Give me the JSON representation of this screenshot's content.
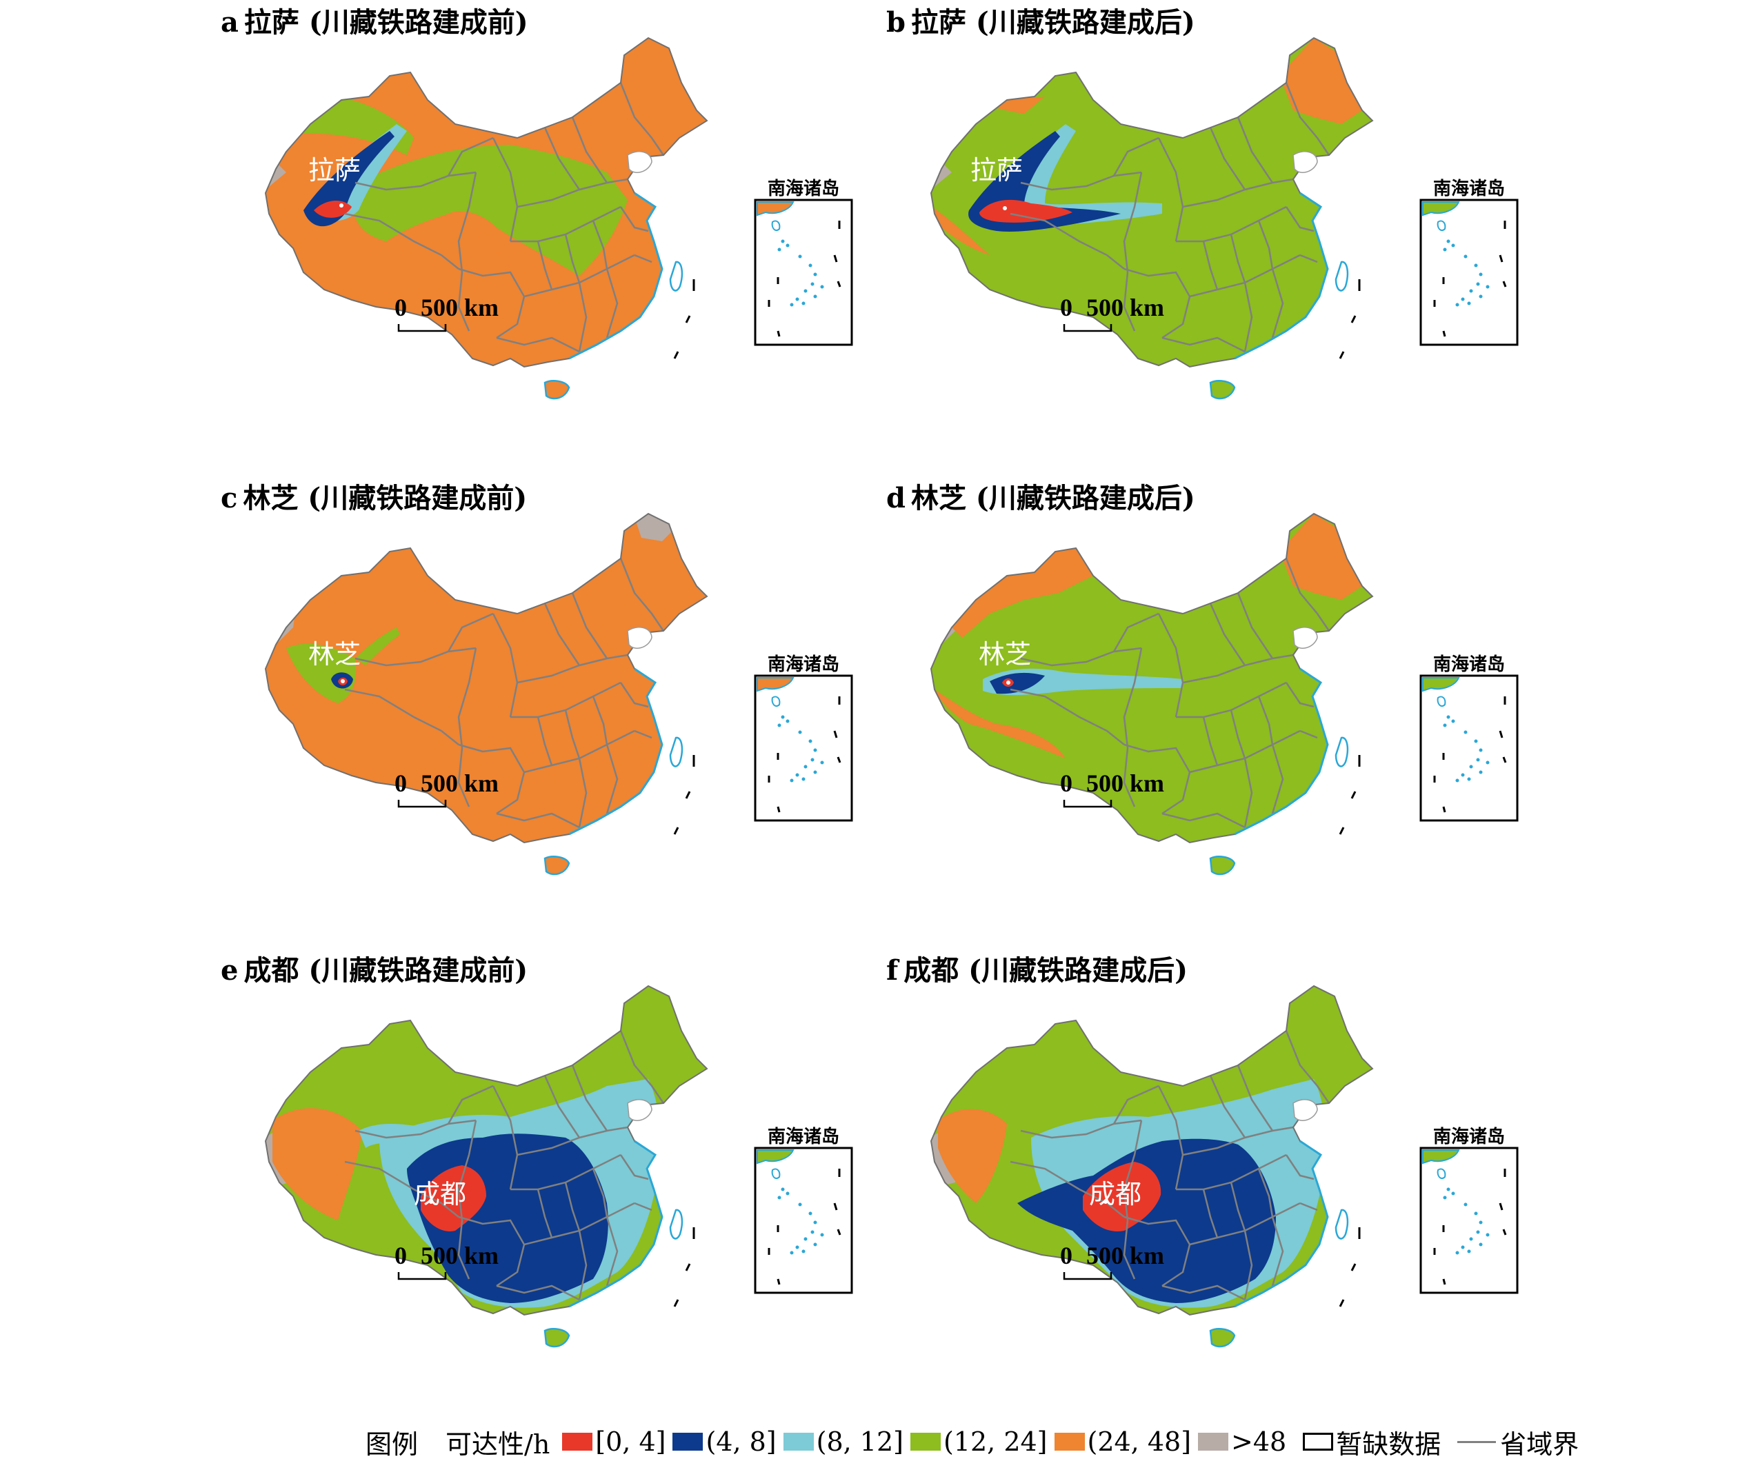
{
  "panels": [
    {
      "id": "a",
      "letter": "a",
      "title": "拉萨 (川藏铁路建成前)",
      "city": "拉萨",
      "base": "orange",
      "variant": "lhasa-before"
    },
    {
      "id": "b",
      "letter": "b",
      "title": "拉萨 (川藏铁路建成后)",
      "city": "拉萨",
      "base": "green",
      "variant": "lhasa-after"
    },
    {
      "id": "c",
      "letter": "c",
      "title": "林芝 (川藏铁路建成前)",
      "city": "林芝",
      "base": "orange",
      "variant": "nyingchi-before"
    },
    {
      "id": "d",
      "letter": "d",
      "title": "林芝 (川藏铁路建成后)",
      "city": "林芝",
      "base": "green",
      "variant": "nyingchi-after"
    },
    {
      "id": "e",
      "letter": "e",
      "title": "成都 (川藏铁路建成前)",
      "city": "成都",
      "base": "green",
      "variant": "chengdu-before"
    },
    {
      "id": "f",
      "letter": "f",
      "title": "成都 (川藏铁路建成后)",
      "city": "成都",
      "base": "green",
      "variant": "chengdu-after"
    }
  ],
  "scale_bar": {
    "zero": "0",
    "label": "500 km"
  },
  "inset_title": "南海诸岛",
  "legend": {
    "title": "图例",
    "subtitle": "可达性/h",
    "items": [
      {
        "label": "[0, 4]",
        "color": "#e8382a"
      },
      {
        "label": "(4, 8]",
        "color": "#0d3a8c"
      },
      {
        "label": "(8, 12]",
        "color": "#7ccbd6"
      },
      {
        "label": "(12, 24]",
        "color": "#8dbd1e"
      },
      {
        "label": "(24, 48]",
        "color": "#ef8431"
      },
      {
        "label": ">48",
        "color": "#b7aca6"
      }
    ],
    "no_data": "暂缺数据",
    "boundary": "省域界"
  },
  "colors": {
    "orange": "#ef8431",
    "green": "#8dbd1e",
    "red": "#e8382a",
    "navy": "#0d3a8c",
    "cyan": "#7ccbd6",
    "gray": "#b7aca6",
    "boundary": "#808080",
    "coast": "#2aa7d6"
  }
}
